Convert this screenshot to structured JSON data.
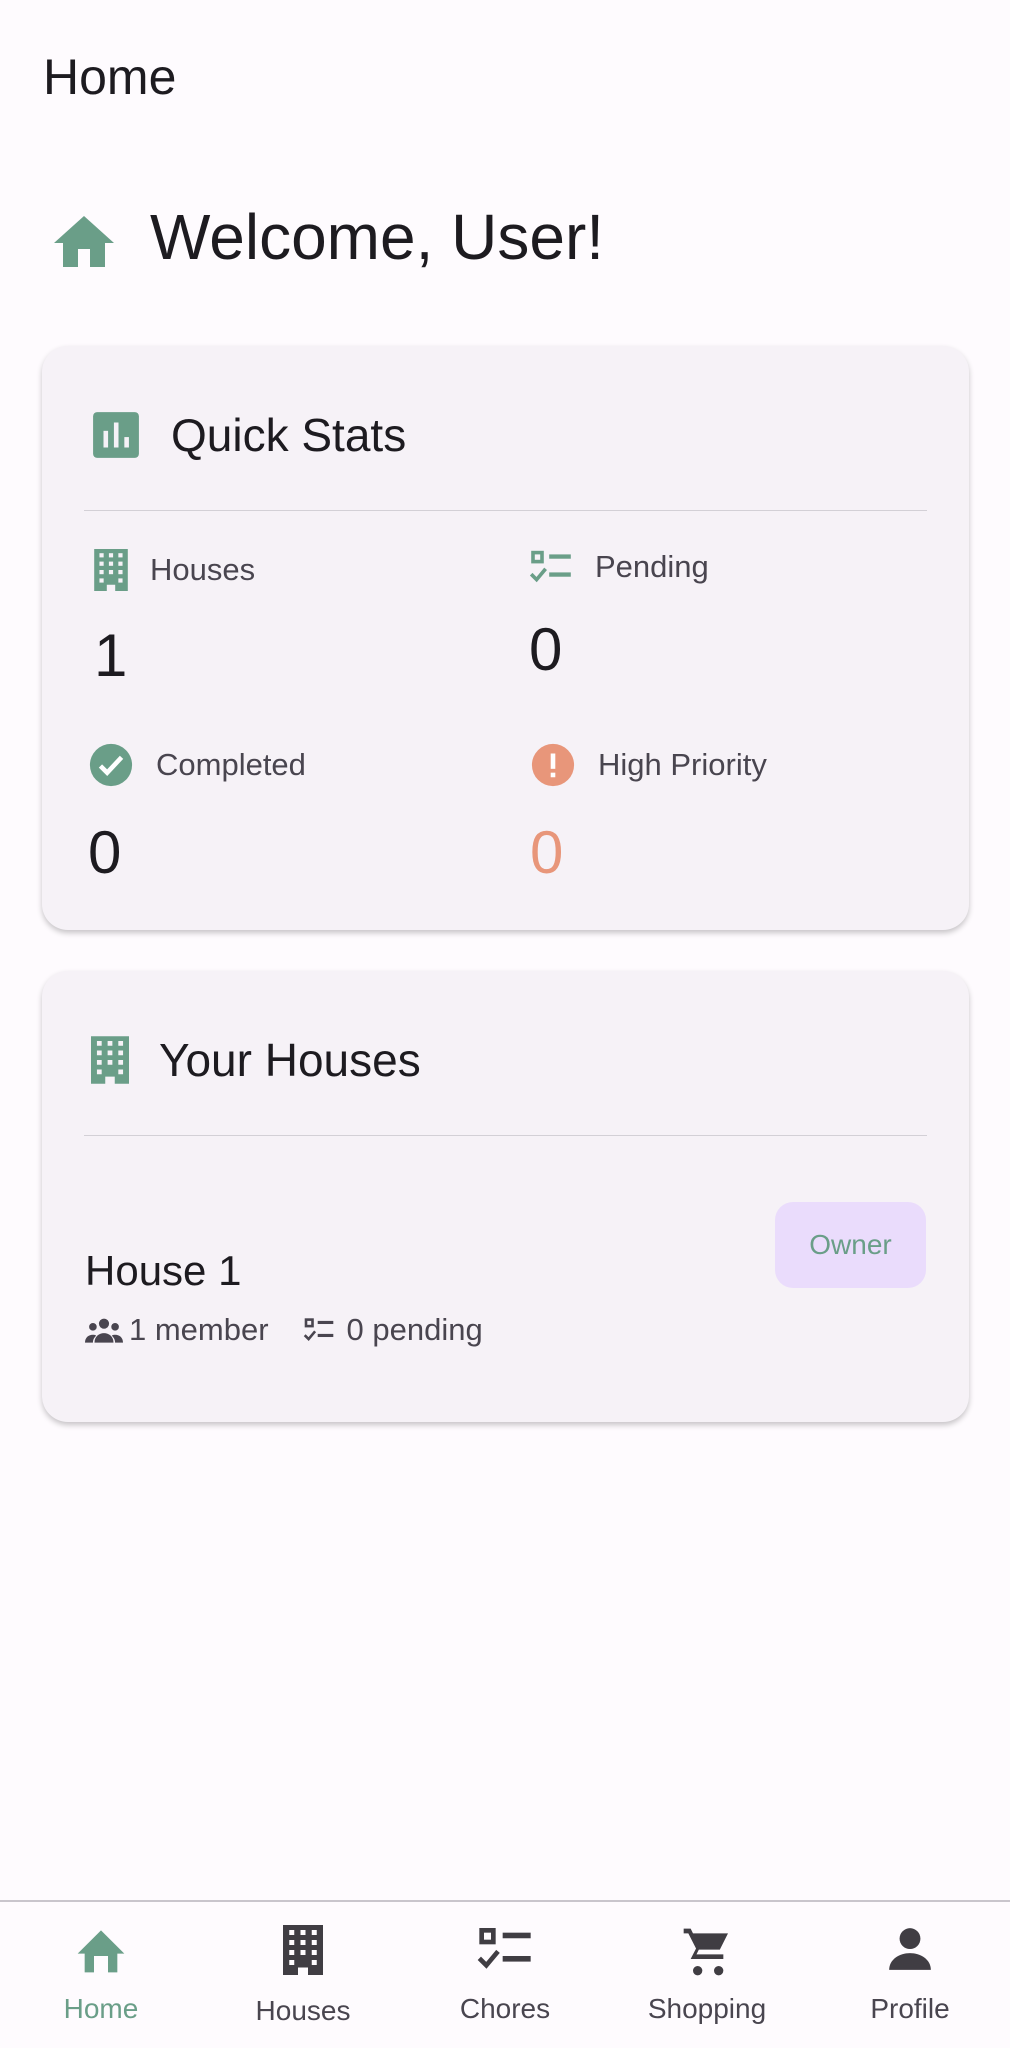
{
  "header": {
    "title": "Home"
  },
  "welcome": {
    "text": "Welcome, User!",
    "icon": "home-icon"
  },
  "colors": {
    "accent": "#6a9e88",
    "warning": "#e8967a",
    "badge_bg": "#eadcfc"
  },
  "quick_stats": {
    "title": "Quick Stats",
    "items": [
      {
        "label": "Houses",
        "value": "1",
        "icon": "building-icon"
      },
      {
        "label": "Pending",
        "value": "0",
        "icon": "checklist-icon"
      },
      {
        "label": "Completed",
        "value": "0",
        "icon": "check-circle-icon"
      },
      {
        "label": "High Priority",
        "value": "0",
        "icon": "error-icon"
      }
    ]
  },
  "your_houses": {
    "title": "Your Houses",
    "houses": [
      {
        "name": "House 1",
        "role": "Owner",
        "members": "1 member",
        "pending": "0 pending"
      }
    ]
  },
  "nav": {
    "items": [
      {
        "label": "Home",
        "active": true
      },
      {
        "label": "Houses"
      },
      {
        "label": "Chores"
      },
      {
        "label": "Shopping"
      },
      {
        "label": "Profile"
      }
    ]
  }
}
